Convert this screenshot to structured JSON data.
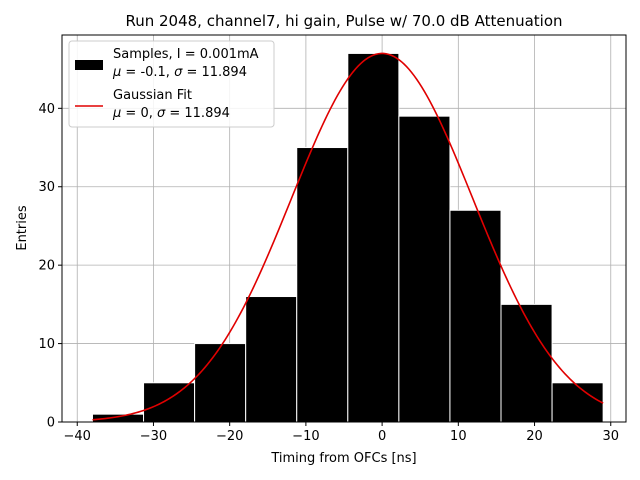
{
  "chart_data": {
    "type": "bar",
    "title": "Run 2048, channel7, hi gain, Pulse w/ 70.0 dB Attenuation",
    "xlabel": "Timing from OFCs [ns]",
    "ylabel": "Entries",
    "xlim": [
      -42,
      32
    ],
    "ylim": [
      0,
      49.35
    ],
    "grid": true,
    "legend_placement": "top-left",
    "x_ticks": [
      -40,
      -30,
      -20,
      -10,
      0,
      10,
      20,
      30
    ],
    "x_tick_labels": [
      "−40",
      "−30",
      "−20",
      "−10",
      "0",
      "10",
      "20",
      "30"
    ],
    "y_ticks": [
      0,
      10,
      20,
      30,
      40
    ],
    "y_tick_labels": [
      "0",
      "10",
      "20",
      "30",
      "40"
    ],
    "histogram": {
      "name": "Samples, I = 0.001mA",
      "name_line2_parts": [
        "μ",
        " = -0.1, ",
        "σ",
        " = 11.894"
      ],
      "color": "#000000",
      "edge_color": "#ffffff",
      "bin_edges": [
        -38.0,
        -31.3,
        -24.6,
        -17.9,
        -11.2,
        -4.5,
        2.2,
        8.9,
        15.6,
        22.3,
        29.0
      ],
      "counts": [
        1,
        5,
        10,
        16,
        35,
        47,
        39,
        27,
        15,
        5
      ]
    },
    "fit": {
      "name": "Gaussian Fit",
      "name_line2_parts": [
        "μ",
        " = 0, ",
        "σ",
        " = 11.894"
      ],
      "color": "#e00000",
      "mu": 0,
      "sigma": 11.894,
      "amplitude": 47,
      "x_range": [
        -38,
        29
      ]
    }
  }
}
